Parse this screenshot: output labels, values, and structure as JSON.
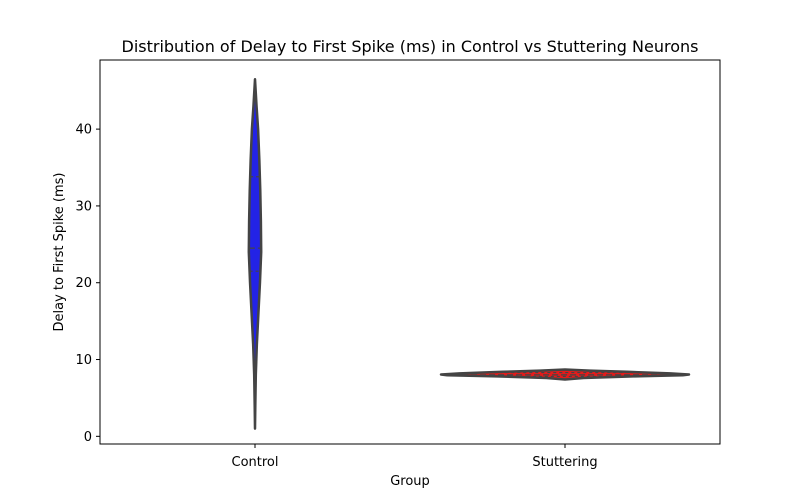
{
  "chart_data": {
    "type": "violin",
    "title": "Distribution of Delay to First Spike (ms) in Control vs Stuttering Neurons",
    "xlabel": "Group",
    "ylabel": "Delay to First Spike (ms)",
    "categories": [
      "Control",
      "Stuttering"
    ],
    "ylim": [
      -1,
      49
    ],
    "yticks": [
      0,
      10,
      20,
      30,
      40
    ],
    "grid": false,
    "legend": "none",
    "series": [
      {
        "category": "Control",
        "color": "#2323e6",
        "min": 1.0,
        "max": 46.5,
        "q1": 21.5,
        "median": 24.5,
        "q3": 33.8,
        "density": [
          [
            1.0,
            0.0
          ],
          [
            4.0,
            0.05
          ],
          [
            8.0,
            0.13
          ],
          [
            12.0,
            0.3
          ],
          [
            16.0,
            0.55
          ],
          [
            20.0,
            0.8
          ],
          [
            24.0,
            1.0
          ],
          [
            28.0,
            0.95
          ],
          [
            32.0,
            0.85
          ],
          [
            36.0,
            0.7
          ],
          [
            40.0,
            0.5
          ],
          [
            43.0,
            0.25
          ],
          [
            46.5,
            0.0
          ]
        ],
        "relative_width": 0.05
      },
      {
        "category": "Stuttering",
        "color": "#e61a1a",
        "min": 7.4,
        "max": 8.7,
        "q1": 7.8,
        "median": 8.0,
        "q3": 8.3,
        "density": [
          [
            7.4,
            0.0
          ],
          [
            7.6,
            0.15
          ],
          [
            7.8,
            0.55
          ],
          [
            7.95,
            0.95
          ],
          [
            8.05,
            1.0
          ],
          [
            8.2,
            0.85
          ],
          [
            8.4,
            0.5
          ],
          [
            8.55,
            0.2
          ],
          [
            8.7,
            0.0
          ]
        ],
        "relative_width": 1.0
      }
    ]
  }
}
